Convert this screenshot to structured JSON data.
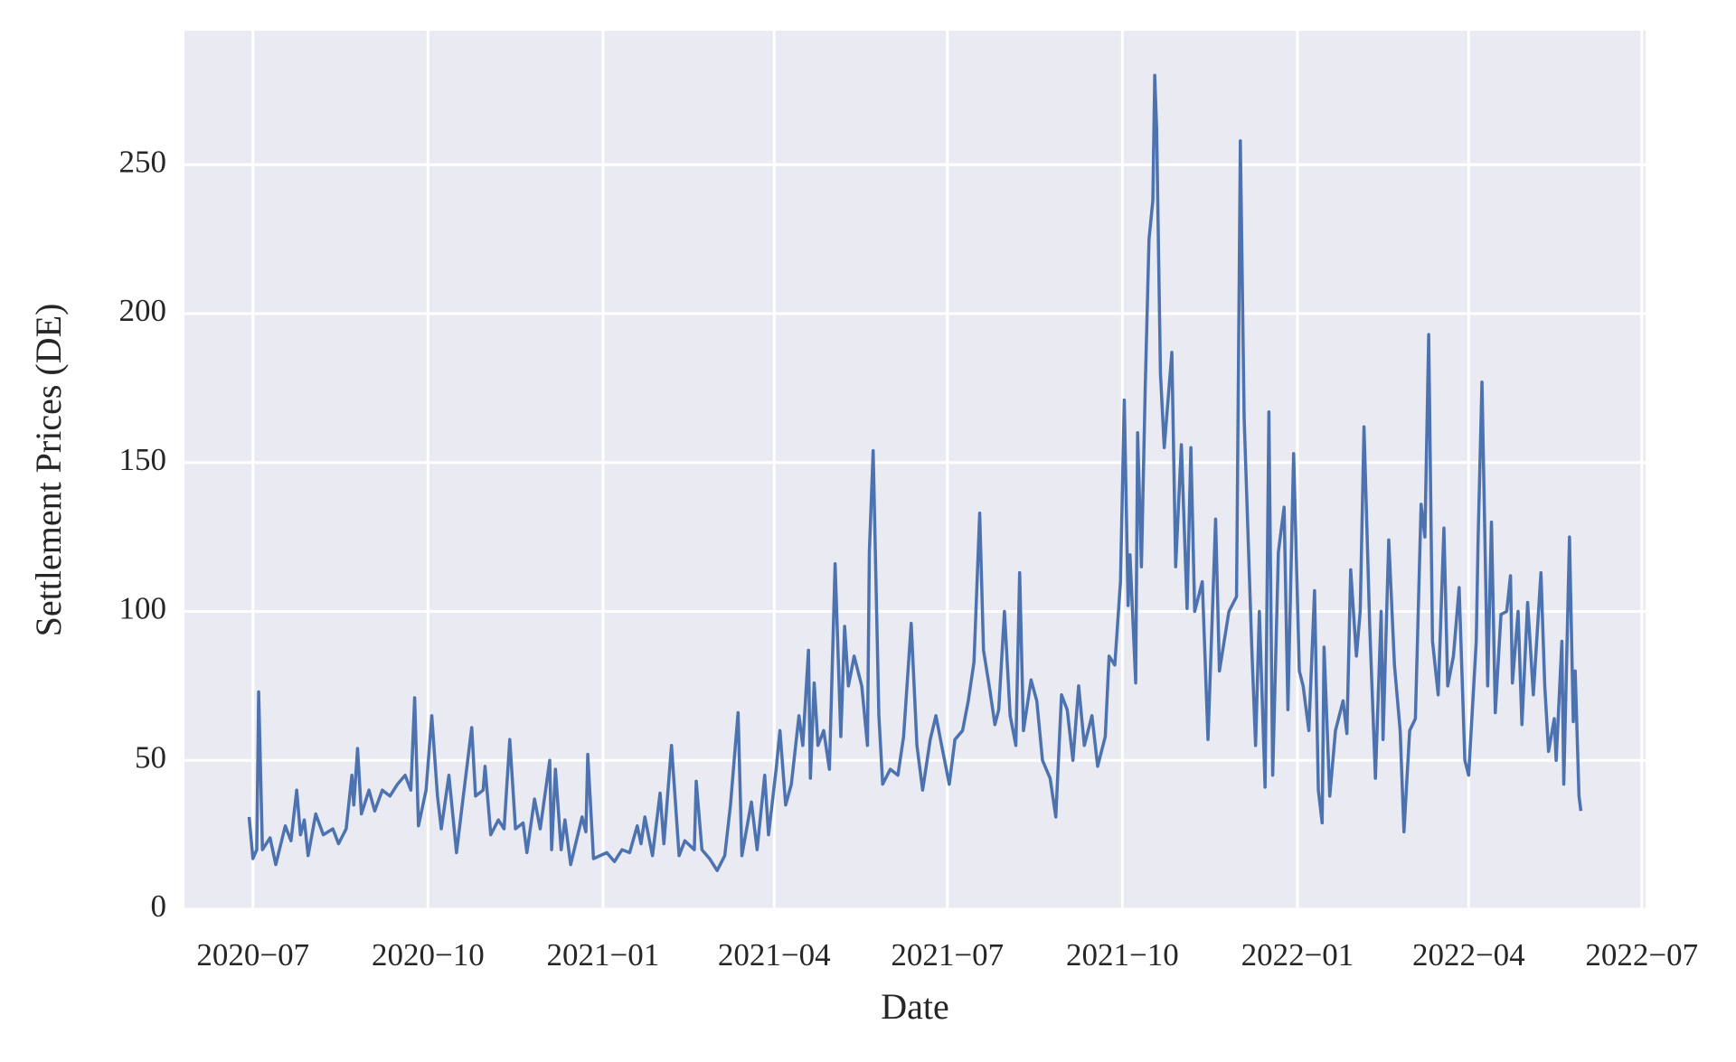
{
  "chart_data": {
    "type": "line",
    "xlabel": "Date",
    "ylabel": "Settlement Prices (DE)",
    "color": "#4c72b0",
    "grid": true,
    "xlim": [
      "2020-05-26",
      "2022-07-03"
    ],
    "ylim": [
      0,
      295
    ],
    "xticks": [
      {
        "value": "2020-07-01",
        "label": "2020−07"
      },
      {
        "value": "2020-10-01",
        "label": "2020−10"
      },
      {
        "value": "2021-01-01",
        "label": "2021−01"
      },
      {
        "value": "2021-04-01",
        "label": "2021−04"
      },
      {
        "value": "2021-07-01",
        "label": "2021−07"
      },
      {
        "value": "2021-10-01",
        "label": "2021−10"
      },
      {
        "value": "2022-01-01",
        "label": "2022−01"
      },
      {
        "value": "2022-04-01",
        "label": "2022−04"
      },
      {
        "value": "2022-07-01",
        "label": "2022−07"
      }
    ],
    "yticks": [
      0,
      50,
      100,
      150,
      200,
      250
    ],
    "x": [
      "2020-06-29",
      "2020-07-01",
      "2020-07-03",
      "2020-07-04",
      "2020-07-06",
      "2020-07-10",
      "2020-07-13",
      "2020-07-18",
      "2020-07-21",
      "2020-07-24",
      "2020-07-26",
      "2020-07-28",
      "2020-07-30",
      "2020-08-03",
      "2020-08-07",
      "2020-08-12",
      "2020-08-15",
      "2020-08-19",
      "2020-08-22",
      "2020-08-23",
      "2020-08-25",
      "2020-08-27",
      "2020-08-31",
      "2020-09-03",
      "2020-09-07",
      "2020-09-11",
      "2020-09-15",
      "2020-09-19",
      "2020-09-22",
      "2020-09-24",
      "2020-09-26",
      "2020-09-30",
      "2020-10-03",
      "2020-10-06",
      "2020-10-08",
      "2020-10-12",
      "2020-10-16",
      "2020-10-19",
      "2020-10-24",
      "2020-10-26",
      "2020-10-30",
      "2020-10-31",
      "2020-11-03",
      "2020-11-07",
      "2020-11-10",
      "2020-11-13",
      "2020-11-16",
      "2020-11-20",
      "2020-11-22",
      "2020-11-26",
      "2020-11-29",
      "2020-12-04",
      "2020-12-05",
      "2020-12-07",
      "2020-12-10",
      "2020-12-12",
      "2020-12-15",
      "2020-12-21",
      "2020-12-23",
      "2020-12-24",
      "2020-12-27",
      "2021-01-03",
      "2021-01-07",
      "2021-01-11",
      "2021-01-15",
      "2021-01-19",
      "2021-01-21",
      "2021-01-23",
      "2021-01-27",
      "2021-01-31",
      "2021-02-02",
      "2021-02-06",
      "2021-02-10",
      "2021-02-13",
      "2021-02-18",
      "2021-02-19",
      "2021-02-22",
      "2021-02-26",
      "2021-03-02",
      "2021-03-06",
      "2021-03-09",
      "2021-03-13",
      "2021-03-15",
      "2021-03-20",
      "2021-03-23",
      "2021-03-27",
      "2021-03-29",
      "2021-04-02",
      "2021-04-04",
      "2021-04-07",
      "2021-04-10",
      "2021-04-14",
      "2021-04-16",
      "2021-04-19",
      "2021-04-20",
      "2021-04-22",
      "2021-04-24",
      "2021-04-27",
      "2021-04-30",
      "2021-05-03",
      "2021-05-06",
      "2021-05-08",
      "2021-05-10",
      "2021-05-13",
      "2021-05-17",
      "2021-05-20",
      "2021-05-21",
      "2021-05-23",
      "2021-05-26",
      "2021-05-28",
      "2021-06-01",
      "2021-06-05",
      "2021-06-08",
      "2021-06-12",
      "2021-06-15",
      "2021-06-18",
      "2021-06-22",
      "2021-06-25",
      "2021-06-28",
      "2021-07-02",
      "2021-07-05",
      "2021-07-09",
      "2021-07-12",
      "2021-07-15",
      "2021-07-18",
      "2021-07-20",
      "2021-07-23",
      "2021-07-26",
      "2021-07-28",
      "2021-07-31",
      "2021-08-03",
      "2021-08-06",
      "2021-08-08",
      "2021-08-10",
      "2021-08-14",
      "2021-08-17",
      "2021-08-20",
      "2021-08-24",
      "2021-08-27",
      "2021-08-30",
      "2021-09-02",
      "2021-09-05",
      "2021-09-08",
      "2021-09-11",
      "2021-09-15",
      "2021-09-18",
      "2021-09-22",
      "2021-09-24",
      "2021-09-27",
      "2021-09-30",
      "2021-10-02",
      "2021-10-04",
      "2021-10-05",
      "2021-10-08",
      "2021-10-09",
      "2021-10-11",
      "2021-10-13",
      "2021-10-15",
      "2021-10-17",
      "2021-10-18",
      "2021-10-19",
      "2021-10-21",
      "2021-10-23",
      "2021-10-27",
      "2021-10-29",
      "2021-11-01",
      "2021-11-04",
      "2021-11-06",
      "2021-11-08",
      "2021-11-12",
      "2021-11-15",
      "2021-11-19",
      "2021-11-21",
      "2021-11-26",
      "2021-11-30",
      "2021-12-02",
      "2021-12-04",
      "2021-12-08",
      "2021-12-10",
      "2021-12-12",
      "2021-12-15",
      "2021-12-17",
      "2021-12-19",
      "2021-12-22",
      "2021-12-25",
      "2021-12-27",
      "2021-12-30",
      "2022-01-02",
      "2022-01-04",
      "2022-01-07",
      "2022-01-10",
      "2022-01-12",
      "2022-01-14",
      "2022-01-15",
      "2022-01-18",
      "2022-01-21",
      "2022-01-25",
      "2022-01-27",
      "2022-01-29",
      "2022-02-01",
      "2022-02-03",
      "2022-02-05",
      "2022-02-08",
      "2022-02-11",
      "2022-02-14",
      "2022-02-15",
      "2022-02-18",
      "2022-02-21",
      "2022-02-24",
      "2022-02-26",
      "2022-03-01",
      "2022-03-04",
      "2022-03-07",
      "2022-03-09",
      "2022-03-11",
      "2022-03-13",
      "2022-03-16",
      "2022-03-19",
      "2022-03-21",
      "2022-03-24",
      "2022-03-27",
      "2022-03-30",
      "2022-04-01",
      "2022-04-05",
      "2022-04-06",
      "2022-04-08",
      "2022-04-11",
      "2022-04-13",
      "2022-04-15",
      "2022-04-18",
      "2022-04-21",
      "2022-04-23",
      "2022-04-24",
      "2022-04-27",
      "2022-04-29",
      "2022-05-02",
      "2022-05-05",
      "2022-05-09",
      "2022-05-11",
      "2022-05-13",
      "2022-05-16",
      "2022-05-17",
      "2022-05-20",
      "2022-05-21",
      "2022-05-24",
      "2022-05-26",
      "2022-05-27",
      "2022-05-29",
      "2022-05-30"
    ],
    "values": [
      31,
      17,
      20,
      73,
      20,
      24,
      15,
      28,
      23,
      40,
      25,
      30,
      18,
      32,
      25,
      27,
      22,
      27,
      45,
      35,
      54,
      32,
      40,
      33,
      40,
      38,
      42,
      45,
      40,
      71,
      28,
      40,
      65,
      38,
      27,
      45,
      19,
      35,
      61,
      38,
      40,
      48,
      25,
      30,
      27,
      57,
      27,
      29,
      19,
      37,
      27,
      50,
      20,
      47,
      20,
      30,
      15,
      31,
      26,
      52,
      17,
      19,
      16,
      20,
      19,
      28,
      22,
      31,
      18,
      39,
      22,
      55,
      18,
      23,
      20,
      43,
      20,
      17,
      13,
      18,
      35,
      66,
      18,
      36,
      20,
      45,
      25,
      47,
      60,
      35,
      42,
      65,
      55,
      87,
      44,
      76,
      55,
      60,
      47,
      116,
      58,
      95,
      75,
      85,
      75,
      55,
      120,
      154,
      65,
      42,
      47,
      45,
      58,
      96,
      55,
      40,
      57,
      65,
      55,
      42,
      57,
      60,
      70,
      83,
      133,
      87,
      75,
      62,
      67,
      100,
      65,
      55,
      113,
      60,
      77,
      70,
      50,
      44,
      31,
      72,
      67,
      50,
      75,
      55,
      65,
      48,
      58,
      85,
      82,
      110,
      171,
      102,
      119,
      76,
      160,
      115,
      175,
      225,
      238,
      280,
      262,
      180,
      155,
      187,
      115,
      156,
      101,
      155,
      100,
      110,
      57,
      131,
      80,
      100,
      105,
      258,
      165,
      88,
      55,
      100,
      41,
      167,
      45,
      120,
      135,
      67,
      153,
      80,
      75,
      60,
      107,
      40,
      29,
      88,
      38,
      60,
      70,
      59,
      114,
      85,
      100,
      162,
      95,
      44,
      100,
      57,
      124,
      82,
      60,
      26,
      60,
      64,
      136,
      125,
      193,
      90,
      72,
      128,
      75,
      85,
      108,
      50,
      45,
      90,
      125,
      177,
      75,
      130,
      66,
      99,
      100,
      112,
      76,
      100,
      62,
      103,
      72,
      113,
      75,
      53,
      64,
      50,
      90,
      42,
      125,
      63,
      80,
      38,
      33
    ]
  }
}
